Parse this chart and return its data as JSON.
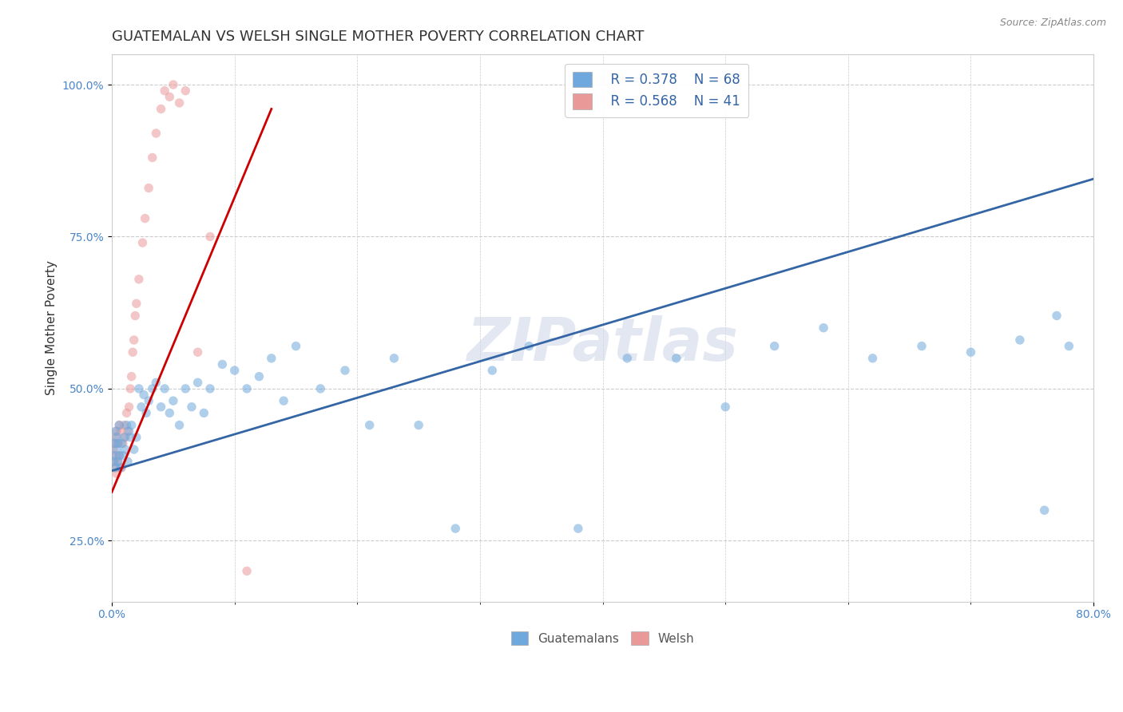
{
  "title": "GUATEMALAN VS WELSH SINGLE MOTHER POVERTY CORRELATION CHART",
  "source_text": "Source: ZipAtlas.com",
  "ylabel": "Single Mother Poverty",
  "xlim": [
    0.0,
    0.8
  ],
  "ylim": [
    0.15,
    1.05
  ],
  "ytick_labels": [
    "25.0%",
    "50.0%",
    "75.0%",
    "100.0%"
  ],
  "ytick_positions": [
    0.25,
    0.5,
    0.75,
    1.0
  ],
  "guatemalan_color": "#6fa8dc",
  "welsh_color": "#ea9999",
  "guatemalan_line_color": "#3465a4",
  "welsh_line_color": "#cc0000",
  "legend_R_guatemalan": "R = 0.378",
  "legend_N_guatemalan": "N = 68",
  "legend_R_welsh": "R = 0.568",
  "legend_N_welsh": "N = 41",
  "watermark": "ZIPatlas",
  "guatemalan_points_x": [
    0.001,
    0.002,
    0.002,
    0.003,
    0.003,
    0.004,
    0.004,
    0.005,
    0.005,
    0.006,
    0.006,
    0.007,
    0.008,
    0.009,
    0.01,
    0.011,
    0.012,
    0.013,
    0.014,
    0.015,
    0.016,
    0.018,
    0.02,
    0.022,
    0.024,
    0.026,
    0.028,
    0.03,
    0.033,
    0.036,
    0.04,
    0.043,
    0.047,
    0.05,
    0.055,
    0.06,
    0.065,
    0.07,
    0.075,
    0.08,
    0.09,
    0.1,
    0.11,
    0.12,
    0.13,
    0.14,
    0.15,
    0.17,
    0.19,
    0.21,
    0.23,
    0.25,
    0.28,
    0.31,
    0.34,
    0.38,
    0.42,
    0.46,
    0.5,
    0.54,
    0.58,
    0.62,
    0.66,
    0.7,
    0.74,
    0.76,
    0.77,
    0.78
  ],
  "guatemalan_points_y": [
    0.39,
    0.41,
    0.38,
    0.43,
    0.37,
    0.4,
    0.42,
    0.38,
    0.41,
    0.39,
    0.44,
    0.37,
    0.41,
    0.39,
    0.42,
    0.4,
    0.44,
    0.38,
    0.43,
    0.42,
    0.44,
    0.4,
    0.42,
    0.5,
    0.47,
    0.49,
    0.46,
    0.48,
    0.5,
    0.51,
    0.47,
    0.5,
    0.46,
    0.48,
    0.44,
    0.5,
    0.47,
    0.51,
    0.46,
    0.5,
    0.54,
    0.53,
    0.5,
    0.52,
    0.55,
    0.48,
    0.57,
    0.5,
    0.53,
    0.44,
    0.55,
    0.44,
    0.27,
    0.53,
    0.57,
    0.27,
    0.55,
    0.55,
    0.47,
    0.57,
    0.6,
    0.55,
    0.57,
    0.56,
    0.58,
    0.3,
    0.62,
    0.57
  ],
  "guatemalan_line_x": [
    0.0,
    0.8
  ],
  "guatemalan_line_y": [
    0.365,
    0.845
  ],
  "welsh_points_x": [
    0.001,
    0.001,
    0.002,
    0.002,
    0.003,
    0.003,
    0.004,
    0.004,
    0.005,
    0.005,
    0.006,
    0.006,
    0.007,
    0.008,
    0.009,
    0.01,
    0.011,
    0.012,
    0.013,
    0.014,
    0.015,
    0.016,
    0.017,
    0.018,
    0.019,
    0.02,
    0.022,
    0.025,
    0.027,
    0.03,
    0.033,
    0.036,
    0.04,
    0.043,
    0.047,
    0.05,
    0.055,
    0.06,
    0.07,
    0.08,
    0.11
  ],
  "welsh_points_y": [
    0.4,
    0.38,
    0.41,
    0.37,
    0.39,
    0.42,
    0.43,
    0.36,
    0.41,
    0.38,
    0.44,
    0.39,
    0.43,
    0.37,
    0.41,
    0.44,
    0.42,
    0.46,
    0.43,
    0.47,
    0.5,
    0.52,
    0.56,
    0.58,
    0.62,
    0.64,
    0.68,
    0.74,
    0.78,
    0.83,
    0.88,
    0.92,
    0.96,
    0.99,
    0.98,
    1.0,
    0.97,
    0.99,
    0.56,
    0.75,
    0.2
  ],
  "welsh_line_x": [
    0.0,
    0.13
  ],
  "welsh_line_y": [
    0.33,
    0.96
  ],
  "background_color": "#ffffff",
  "grid_color": "#cccccc",
  "title_fontsize": 13,
  "axis_label_fontsize": 11,
  "tick_fontsize": 10,
  "legend_fontsize": 12,
  "marker_size": 68,
  "marker_alpha": 0.55,
  "line_width": 2.0
}
